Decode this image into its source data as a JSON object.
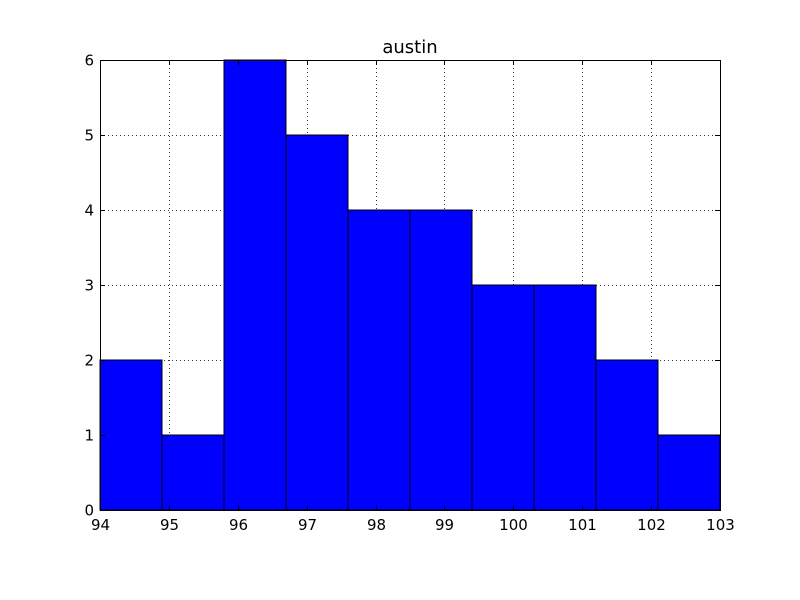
{
  "chart_data": {
    "type": "bar",
    "title": "austin",
    "xlabel": "",
    "ylabel": "",
    "bin_edges": [
      94,
      94.9,
      95.8,
      96.7,
      97.6,
      98.5,
      99.4,
      100.3,
      101.2,
      102.1,
      103
    ],
    "values": [
      2,
      1,
      6,
      5,
      4,
      4,
      3,
      3,
      2,
      1
    ],
    "xlim": [
      94,
      103
    ],
    "ylim": [
      0,
      6
    ],
    "xticks": [
      "94",
      "95",
      "96",
      "97",
      "98",
      "99",
      "100",
      "101",
      "102",
      "103"
    ],
    "yticks": [
      "0",
      "1",
      "2",
      "3",
      "4",
      "5",
      "6"
    ],
    "grid": true,
    "colors": {
      "bar": "#0000ff",
      "edge": "#000000"
    }
  }
}
